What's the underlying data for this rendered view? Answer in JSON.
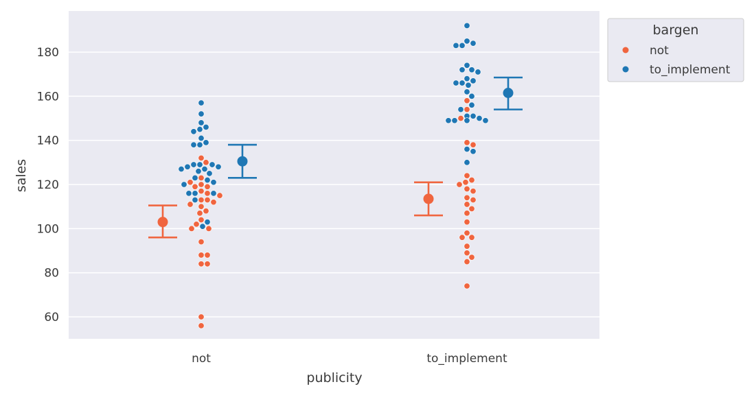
{
  "chart_data": {
    "type": "scatter",
    "subtype": "swarm-with-mean-and-errorbars",
    "xlabel": "publicity",
    "ylabel": "sales",
    "categories": [
      "not",
      "to_implement"
    ],
    "ylim": [
      50,
      195
    ],
    "yticks": [
      60,
      80,
      100,
      120,
      140,
      160,
      180
    ],
    "grid": true,
    "legend": {
      "title": "bargen",
      "position": "outside-top-right",
      "entries": [
        "not",
        "to_implement"
      ]
    },
    "colors": {
      "not": "#f0653f",
      "to_implement": "#1f77b4",
      "background": "#eaeaf2",
      "grid": "#ffffff"
    },
    "series": [
      {
        "name": "not",
        "color": "#f0653f",
        "points": [
          {
            "x": "not",
            "y": 56
          },
          {
            "x": "not",
            "y": 60
          },
          {
            "x": "not",
            "y": 84
          },
          {
            "x": "not",
            "y": 84
          },
          {
            "x": "not",
            "y": 88
          },
          {
            "x": "not",
            "y": 88
          },
          {
            "x": "not",
            "y": 94
          },
          {
            "x": "not",
            "y": 100
          },
          {
            "x": "not",
            "y": 100
          },
          {
            "x": "not",
            "y": 102
          },
          {
            "x": "not",
            "y": 104
          },
          {
            "x": "not",
            "y": 107
          },
          {
            "x": "not",
            "y": 108
          },
          {
            "x": "not",
            "y": 110
          },
          {
            "x": "not",
            "y": 111
          },
          {
            "x": "not",
            "y": 112
          },
          {
            "x": "not",
            "y": 113
          },
          {
            "x": "not",
            "y": 113
          },
          {
            "x": "not",
            "y": 115
          },
          {
            "x": "not",
            "y": 116
          },
          {
            "x": "not",
            "y": 117
          },
          {
            "x": "not",
            "y": 119
          },
          {
            "x": "not",
            "y": 119
          },
          {
            "x": "not",
            "y": 120
          },
          {
            "x": "not",
            "y": 121
          },
          {
            "x": "not",
            "y": 123
          },
          {
            "x": "not",
            "y": 130
          },
          {
            "x": "not",
            "y": 132
          },
          {
            "x": "to_implement",
            "y": 74
          },
          {
            "x": "to_implement",
            "y": 85
          },
          {
            "x": "to_implement",
            "y": 87
          },
          {
            "x": "to_implement",
            "y": 89
          },
          {
            "x": "to_implement",
            "y": 92
          },
          {
            "x": "to_implement",
            "y": 96
          },
          {
            "x": "to_implement",
            "y": 96
          },
          {
            "x": "to_implement",
            "y": 98
          },
          {
            "x": "to_implement",
            "y": 103
          },
          {
            "x": "to_implement",
            "y": 107
          },
          {
            "x": "to_implement",
            "y": 109
          },
          {
            "x": "to_implement",
            "y": 111
          },
          {
            "x": "to_implement",
            "y": 113
          },
          {
            "x": "to_implement",
            "y": 114
          },
          {
            "x": "to_implement",
            "y": 117
          },
          {
            "x": "to_implement",
            "y": 118
          },
          {
            "x": "to_implement",
            "y": 120
          },
          {
            "x": "to_implement",
            "y": 121
          },
          {
            "x": "to_implement",
            "y": 122
          },
          {
            "x": "to_implement",
            "y": 124
          },
          {
            "x": "to_implement",
            "y": 138
          },
          {
            "x": "to_implement",
            "y": 139
          },
          {
            "x": "to_implement",
            "y": 150
          },
          {
            "x": "to_implement",
            "y": 154
          },
          {
            "x": "to_implement",
            "y": 158
          }
        ],
        "mean": [
          {
            "x": "not",
            "y": 103
          },
          {
            "x": "to_implement",
            "y": 113.5
          }
        ],
        "errorbars": [
          {
            "x": "not",
            "low": 96,
            "high": 110.5
          },
          {
            "x": "to_implement",
            "low": 106,
            "high": 121
          }
        ]
      },
      {
        "name": "to_implement",
        "color": "#1f77b4",
        "points": [
          {
            "x": "not",
            "y": 101
          },
          {
            "x": "not",
            "y": 103
          },
          {
            "x": "not",
            "y": 113
          },
          {
            "x": "not",
            "y": 116
          },
          {
            "x": "not",
            "y": 116
          },
          {
            "x": "not",
            "y": 116
          },
          {
            "x": "not",
            "y": 120
          },
          {
            "x": "not",
            "y": 121
          },
          {
            "x": "not",
            "y": 122
          },
          {
            "x": "not",
            "y": 123
          },
          {
            "x": "not",
            "y": 125
          },
          {
            "x": "not",
            "y": 126
          },
          {
            "x": "not",
            "y": 127
          },
          {
            "x": "not",
            "y": 127
          },
          {
            "x": "not",
            "y": 128
          },
          {
            "x": "not",
            "y": 128
          },
          {
            "x": "not",
            "y": 129
          },
          {
            "x": "not",
            "y": 129
          },
          {
            "x": "not",
            "y": 129
          },
          {
            "x": "not",
            "y": 138
          },
          {
            "x": "not",
            "y": 138
          },
          {
            "x": "not",
            "y": 139
          },
          {
            "x": "not",
            "y": 141
          },
          {
            "x": "not",
            "y": 144
          },
          {
            "x": "not",
            "y": 145
          },
          {
            "x": "not",
            "y": 146
          },
          {
            "x": "not",
            "y": 148
          },
          {
            "x": "not",
            "y": 152
          },
          {
            "x": "not",
            "y": 157
          },
          {
            "x": "to_implement",
            "y": 130
          },
          {
            "x": "to_implement",
            "y": 135
          },
          {
            "x": "to_implement",
            "y": 136
          },
          {
            "x": "to_implement",
            "y": 149
          },
          {
            "x": "to_implement",
            "y": 149
          },
          {
            "x": "to_implement",
            "y": 149
          },
          {
            "x": "to_implement",
            "y": 149
          },
          {
            "x": "to_implement",
            "y": 149
          },
          {
            "x": "to_implement",
            "y": 150
          },
          {
            "x": "to_implement",
            "y": 151
          },
          {
            "x": "to_implement",
            "y": 151
          },
          {
            "x": "to_implement",
            "y": 154
          },
          {
            "x": "to_implement",
            "y": 156
          },
          {
            "x": "to_implement",
            "y": 160
          },
          {
            "x": "to_implement",
            "y": 162
          },
          {
            "x": "to_implement",
            "y": 165
          },
          {
            "x": "to_implement",
            "y": 166
          },
          {
            "x": "to_implement",
            "y": 166
          },
          {
            "x": "to_implement",
            "y": 167
          },
          {
            "x": "to_implement",
            "y": 168
          },
          {
            "x": "to_implement",
            "y": 171
          },
          {
            "x": "to_implement",
            "y": 172
          },
          {
            "x": "to_implement",
            "y": 172
          },
          {
            "x": "to_implement",
            "y": 174
          },
          {
            "x": "to_implement",
            "y": 183
          },
          {
            "x": "to_implement",
            "y": 183
          },
          {
            "x": "to_implement",
            "y": 184
          },
          {
            "x": "to_implement",
            "y": 185
          },
          {
            "x": "to_implement",
            "y": 192
          }
        ],
        "mean": [
          {
            "x": "not",
            "y": 130.5
          },
          {
            "x": "to_implement",
            "y": 161.5
          }
        ],
        "errorbars": [
          {
            "x": "not",
            "low": 123,
            "high": 138
          },
          {
            "x": "to_implement",
            "low": 154,
            "high": 168.5
          }
        ]
      }
    ]
  }
}
